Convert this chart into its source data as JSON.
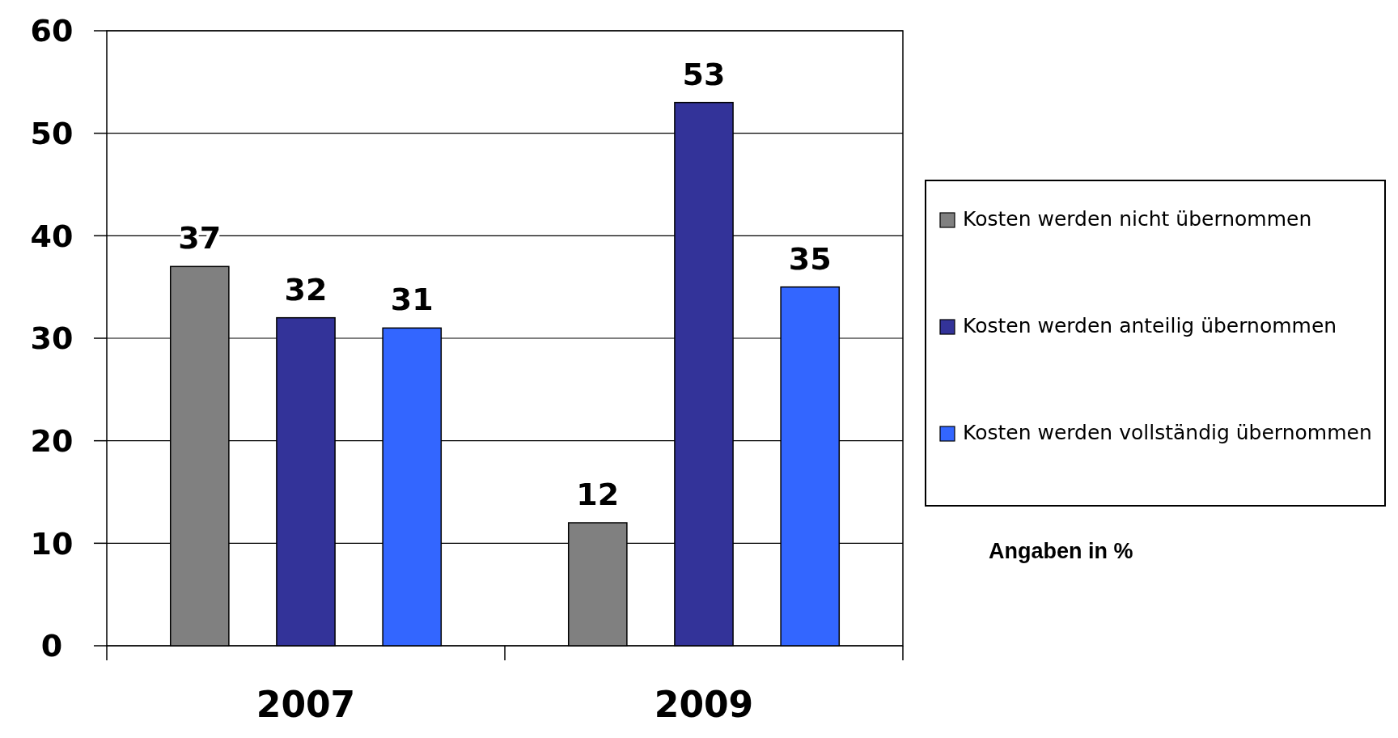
{
  "chart_data": {
    "type": "bar",
    "categories": [
      "2007",
      "2009"
    ],
    "series": [
      {
        "name": "Kosten werden nicht übernommen",
        "color": "#808080",
        "values": [
          37,
          12
        ]
      },
      {
        "name": "Kosten werden anteilig übernommen",
        "color": "#333399",
        "values": [
          32,
          53
        ]
      },
      {
        "name": "Kosten werden vollständig übernommen",
        "color": "#3366ff",
        "values": [
          31,
          35
        ]
      }
    ],
    "ylim": [
      0,
      60
    ],
    "yticks": [
      0,
      10,
      20,
      30,
      40,
      50,
      60
    ],
    "grid": "y",
    "legend": "right",
    "data_labels": true,
    "annotations": [
      "Angaben in %"
    ]
  }
}
